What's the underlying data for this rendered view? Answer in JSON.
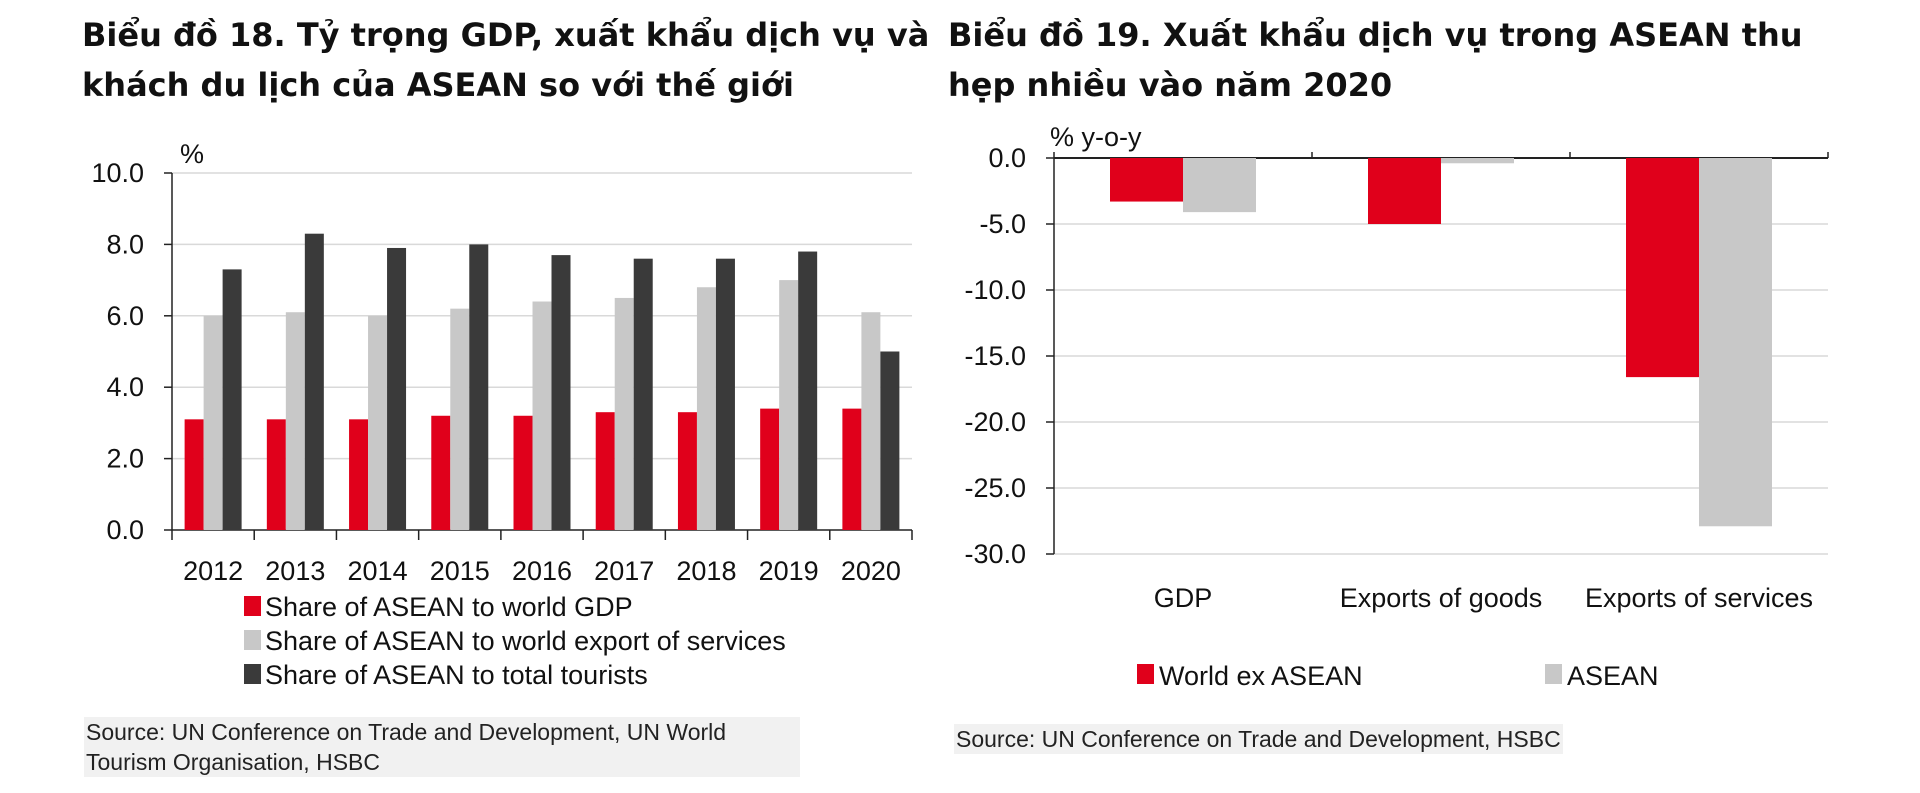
{
  "left_chart": {
    "title_line1": "Biểu đồ 18. Tỷ trọng GDP, xuất khẩu dịch vụ và",
    "title_line2": "khách du lịch của ASEAN so với thế giới",
    "source": "Source: UN Conference on Trade and Development, UN World Tourism Organisation, HSBC"
  },
  "right_chart": {
    "title_line1": "Biểu đồ 19. Xuất khẩu dịch vụ trong ASEAN thu",
    "title_line2": "hẹp nhiều vào năm 2020",
    "source": "Source: UN Conference on Trade and Development, HSBC"
  },
  "colors": {
    "red": "#e0001b",
    "light_gray": "#c8c8c8",
    "dark_gray": "#3a3a3a",
    "grid": "#d9d9d9"
  },
  "chart_data": [
    {
      "type": "bar",
      "ylabel": "%",
      "ylim": [
        0,
        10
      ],
      "yticks": [
        "0.0",
        "2.0",
        "4.0",
        "6.0",
        "8.0",
        "10.0"
      ],
      "categories": [
        "2012",
        "2013",
        "2014",
        "2015",
        "2016",
        "2017",
        "2018",
        "2019",
        "2020"
      ],
      "grid": true,
      "legend_position": "bottom",
      "series": [
        {
          "name": "Share of ASEAN to world GDP",
          "color": "#e0001b",
          "values": [
            3.1,
            3.1,
            3.1,
            3.2,
            3.2,
            3.3,
            3.3,
            3.4,
            3.4
          ]
        },
        {
          "name": "Share of ASEAN to world export of services",
          "color": "#c8c8c8",
          "values": [
            6.0,
            6.1,
            6.0,
            6.2,
            6.4,
            6.5,
            6.8,
            7.0,
            6.1
          ]
        },
        {
          "name": "Share of ASEAN to total tourists",
          "color": "#3a3a3a",
          "values": [
            7.3,
            8.3,
            7.9,
            8.0,
            7.7,
            7.6,
            7.6,
            7.8,
            5.0
          ]
        }
      ]
    },
    {
      "type": "bar",
      "ylabel": "% y-o-y",
      "ylim": [
        -30,
        0
      ],
      "yticks": [
        "0.0",
        "-5.0",
        "-10.0",
        "-15.0",
        "-20.0",
        "-25.0",
        "-30.0"
      ],
      "categories": [
        "GDP",
        "Exports of goods",
        "Exports of services"
      ],
      "grid": true,
      "legend_position": "bottom",
      "series": [
        {
          "name": "World ex ASEAN",
          "color": "#e0001b",
          "values": [
            -3.3,
            -5.0,
            -16.6
          ]
        },
        {
          "name": "ASEAN",
          "color": "#c8c8c8",
          "values": [
            -4.1,
            -0.4,
            -27.9
          ]
        }
      ]
    }
  ]
}
